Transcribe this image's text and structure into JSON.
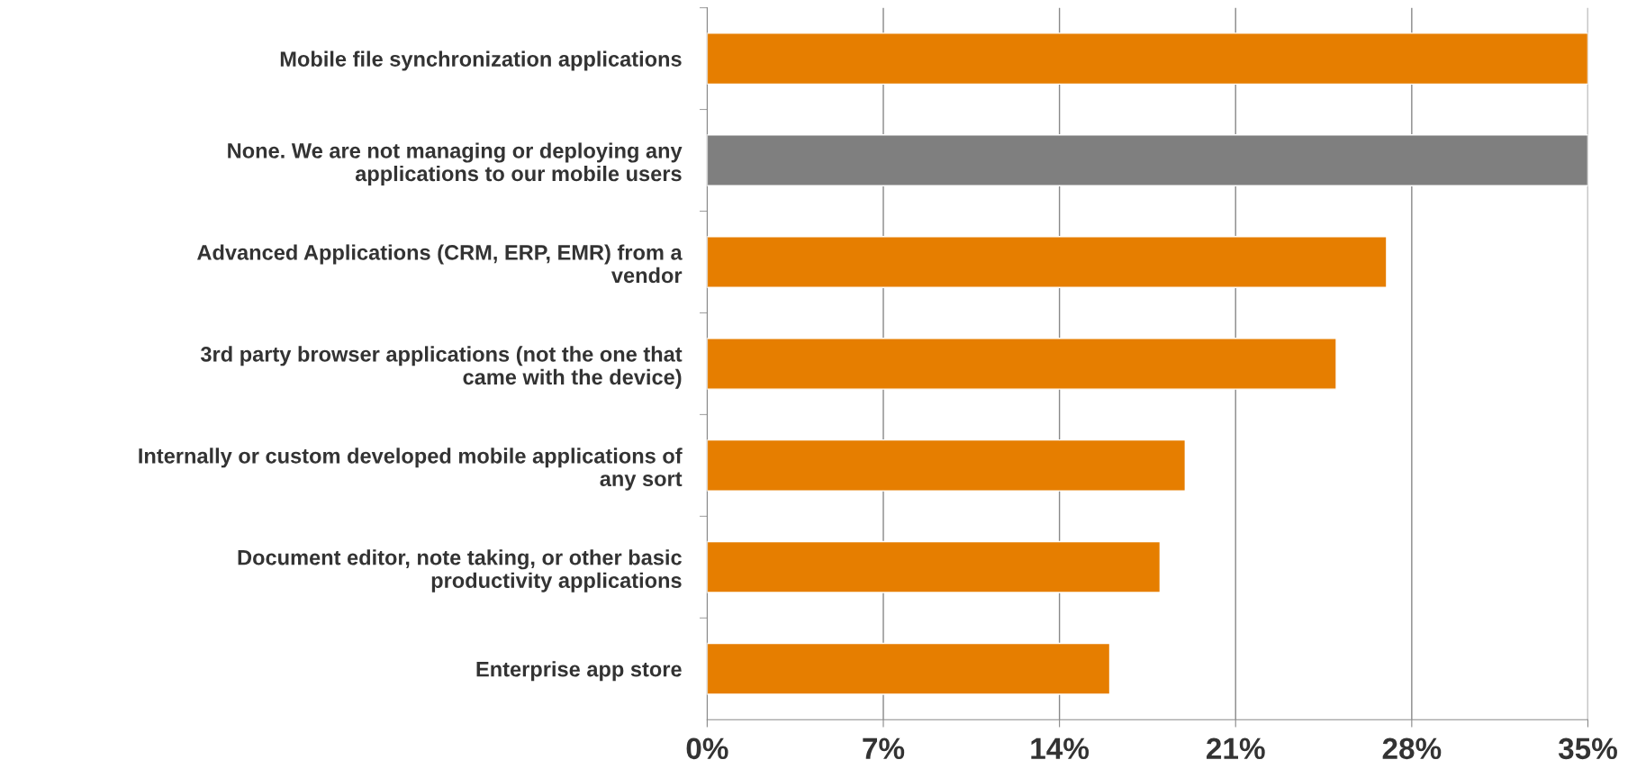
{
  "chart_data": {
    "type": "bar",
    "orientation": "horizontal",
    "categories": [
      "Mobile file synchronization applications",
      "None. We are not managing or deploying any\napplications to our mobile users",
      "Advanced Applications (CRM, ERP, EMR) from a\nvendor",
      "3rd party browser applications (not the one that\ncame with the device)",
      "Internally or custom developed mobile applications of\nany sort",
      "Document editor, note taking, or other basic\nproductivity applications",
      "Enterprise app store"
    ],
    "values": [
      35,
      35,
      27,
      25,
      19,
      18,
      16
    ],
    "colors": [
      "#e67e00",
      "#7f7f7f",
      "#e67e00",
      "#e67e00",
      "#e67e00",
      "#e67e00",
      "#e67e00"
    ],
    "xlim": [
      0,
      35
    ],
    "xticks": [
      {
        "value": 0,
        "label": "0%"
      },
      {
        "value": 7,
        "label": "7%"
      },
      {
        "value": 14,
        "label": "14%"
      },
      {
        "value": 21,
        "label": "21%"
      },
      {
        "value": 28,
        "label": "28%"
      },
      {
        "value": 35,
        "label": "35%"
      }
    ],
    "grid": "x",
    "legend": false
  }
}
